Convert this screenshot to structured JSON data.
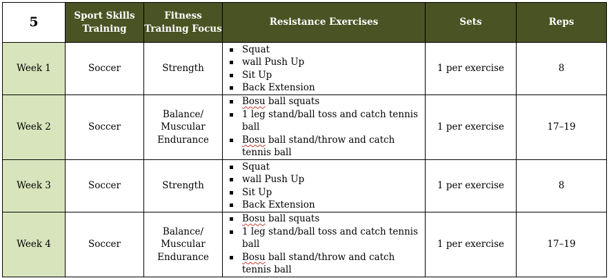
{
  "table": {
    "headers": [
      "5",
      "Sport Skills Training",
      "Fitness Training Focus",
      "Resistance Exercises",
      "Sets",
      "Reps"
    ],
    "rows": [
      {
        "week": "Week 1",
        "sport": "Soccer",
        "focus": "Strength",
        "ex_a": "Squat",
        "ex_a_pre": "",
        "ex_b": "wall Push Up",
        "ex_c": "Sit Up",
        "ex_d": "Back Extension",
        "sets": "1 per exercise",
        "reps": "8"
      },
      {
        "week": "Week 2",
        "sport": "Soccer",
        "focus": "Balance/ Muscular Endurance",
        "ex_a_pre": "Bosu",
        "ex_a": " ball squats",
        "ex_b": "1 leg stand/ball toss and catch tennis ball",
        "ex_c_pre": "Bosu",
        "ex_c": " ball stand/throw and catch tennis ball",
        "sets": "1 per exercise",
        "reps": "17–19"
      },
      {
        "week": "Week 3",
        "sport": "Soccer",
        "focus": "Strength",
        "ex_a": "Squat",
        "ex_b": "wall Push Up",
        "ex_c": "Sit Up",
        "ex_d": "Back Extension",
        "sets": "1 per exercise",
        "reps": "8"
      },
      {
        "week": "Week 4",
        "sport": "Soccer",
        "focus": "Balance/ Muscular Endurance",
        "ex_a_pre": "Bosu",
        "ex_a": " ball squats",
        "ex_b": "1 leg stand/ball toss and catch tennis ball",
        "ex_c_pre": "Bosu",
        "ex_c": " ball stand/throw and catch tennis ball",
        "sets": "1 per exercise",
        "reps": "17–19"
      }
    ]
  }
}
